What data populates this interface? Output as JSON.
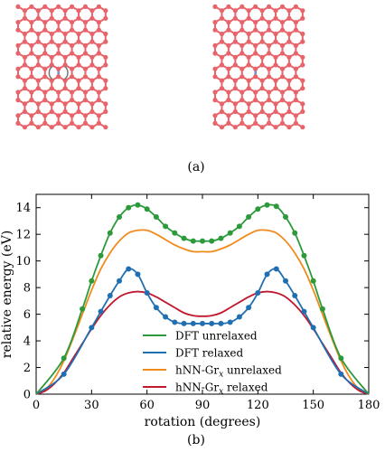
{
  "panel_a": {
    "label": "(a)"
  },
  "panel_b": {
    "label": "(b)"
  },
  "colors": {
    "lattice": "#e8646b",
    "defect_bond": "#7b93c8",
    "arrow": "#777777",
    "dft_unrelaxed": "#2a9a3a",
    "dft_relaxed": "#1f6fb2",
    "hnn_unrelaxed": "#f08a1c",
    "hnn_relaxed": "#c0182f"
  },
  "chart_data": {
    "type": "line",
    "xlabel": "rotation (degrees)",
    "ylabel": "relative energy (eV)",
    "xlim": [
      0,
      180
    ],
    "ylim": [
      0,
      15
    ],
    "xticks": [
      0,
      30,
      60,
      90,
      120,
      150,
      180
    ],
    "yticks": [
      0,
      2,
      4,
      6,
      8,
      10,
      12,
      14
    ],
    "legend_position": "bottom-center",
    "series": [
      {
        "name": "DFT unrelaxed",
        "color": "#2a9a3a",
        "markers": true,
        "x": [
          0,
          15,
          25,
          30,
          35,
          40,
          45,
          50,
          55,
          60,
          65,
          70,
          75,
          80,
          85,
          90,
          95,
          100,
          105,
          110,
          115,
          120,
          125,
          130,
          135,
          140,
          145,
          150,
          155,
          165,
          180
        ],
        "y": [
          0,
          2.7,
          6.4,
          8.5,
          10.4,
          12.1,
          13.3,
          14.0,
          14.2,
          13.9,
          13.3,
          12.6,
          12.1,
          11.7,
          11.5,
          11.5,
          11.5,
          11.7,
          12.1,
          12.6,
          13.3,
          13.9,
          14.2,
          14.1,
          13.3,
          12.1,
          10.4,
          8.5,
          6.4,
          2.7,
          0
        ]
      },
      {
        "name": "DFT relaxed",
        "color": "#1f6fb2",
        "markers": true,
        "x": [
          0,
          15,
          30,
          35,
          40,
          45,
          50,
          55,
          60,
          65,
          70,
          75,
          80,
          85,
          90,
          95,
          100,
          105,
          110,
          115,
          120,
          125,
          130,
          135,
          140,
          145,
          150,
          165,
          180
        ],
        "y": [
          0,
          1.5,
          5.0,
          6.2,
          7.4,
          8.5,
          9.4,
          9.0,
          7.6,
          6.5,
          5.8,
          5.4,
          5.3,
          5.3,
          5.3,
          5.3,
          5.3,
          5.4,
          5.8,
          6.5,
          7.6,
          9.0,
          9.4,
          8.5,
          7.4,
          6.2,
          5.0,
          1.5,
          0
        ]
      },
      {
        "name": "hNN-Gr$_x$ unrelaxed",
        "color": "#f08a1c",
        "markers": false,
        "x": [
          0,
          5,
          10,
          15,
          20,
          25,
          30,
          35,
          40,
          45,
          50,
          55,
          60,
          65,
          70,
          75,
          80,
          85,
          90,
          95,
          100,
          105,
          110,
          115,
          120,
          125,
          130,
          135,
          140,
          145,
          150,
          155,
          160,
          165,
          170,
          175,
          180
        ],
        "y": [
          0,
          0.35,
          1.2,
          2.5,
          4.2,
          6.0,
          7.8,
          9.4,
          10.6,
          11.5,
          12.1,
          12.3,
          12.3,
          12.0,
          11.6,
          11.2,
          10.9,
          10.7,
          10.7,
          10.7,
          10.9,
          11.2,
          11.6,
          12.0,
          12.3,
          12.3,
          12.1,
          11.5,
          10.6,
          9.4,
          7.8,
          6.0,
          4.2,
          2.5,
          1.2,
          0.35,
          0
        ]
      },
      {
        "name": "hNN-Gr$_x$ relaxed",
        "color": "#c0182f",
        "markers": false,
        "x": [
          0,
          5,
          10,
          15,
          20,
          25,
          30,
          35,
          40,
          45,
          50,
          55,
          60,
          65,
          70,
          75,
          80,
          85,
          90,
          95,
          100,
          105,
          110,
          115,
          120,
          125,
          130,
          135,
          140,
          145,
          150,
          155,
          160,
          165,
          170,
          175,
          180
        ],
        "y": [
          0,
          0.25,
          0.8,
          1.6,
          2.7,
          3.8,
          4.9,
          5.9,
          6.7,
          7.3,
          7.6,
          7.7,
          7.6,
          7.3,
          6.9,
          6.5,
          6.1,
          5.9,
          5.85,
          5.9,
          6.1,
          6.5,
          6.9,
          7.3,
          7.6,
          7.7,
          7.6,
          7.3,
          6.7,
          5.9,
          4.9,
          3.8,
          2.7,
          1.6,
          0.8,
          0.25,
          0
        ]
      }
    ]
  }
}
